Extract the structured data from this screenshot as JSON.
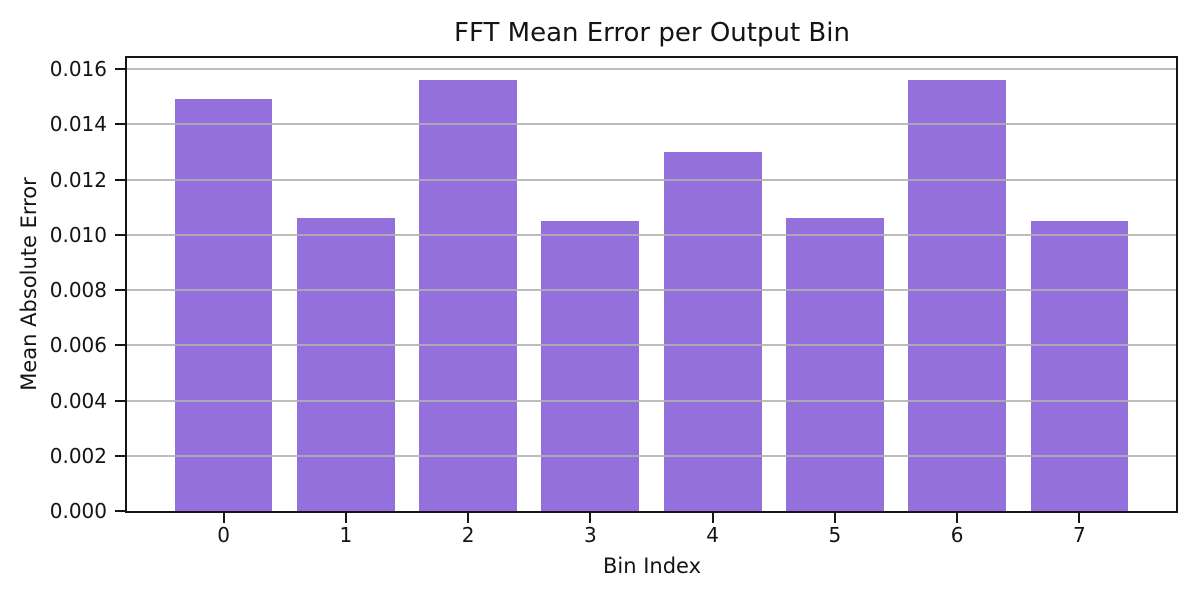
{
  "chart_data": {
    "type": "bar",
    "title": "FFT Mean Error per Output Bin",
    "xlabel": "Bin Index",
    "ylabel": "Mean Absolute Error",
    "categories": [
      "0",
      "1",
      "2",
      "3",
      "4",
      "5",
      "6",
      "7"
    ],
    "values": [
      0.0149,
      0.0106,
      0.0156,
      0.0105,
      0.013,
      0.0106,
      0.0156,
      0.0105
    ],
    "ylim": [
      0,
      0.0164
    ],
    "xlim": [
      -0.79,
      7.79
    ],
    "yticks": [
      0.0,
      0.002,
      0.004,
      0.006,
      0.008,
      0.01,
      0.012,
      0.014,
      0.016
    ],
    "ytick_labels": [
      "0.000",
      "0.002",
      "0.004",
      "0.006",
      "0.008",
      "0.010",
      "0.012",
      "0.014",
      "0.016"
    ],
    "bar_width": 0.8,
    "bar_color": "#9370DB",
    "grid": true,
    "grid_color": "rgba(176,176,176,0.85)",
    "legend": "none"
  }
}
